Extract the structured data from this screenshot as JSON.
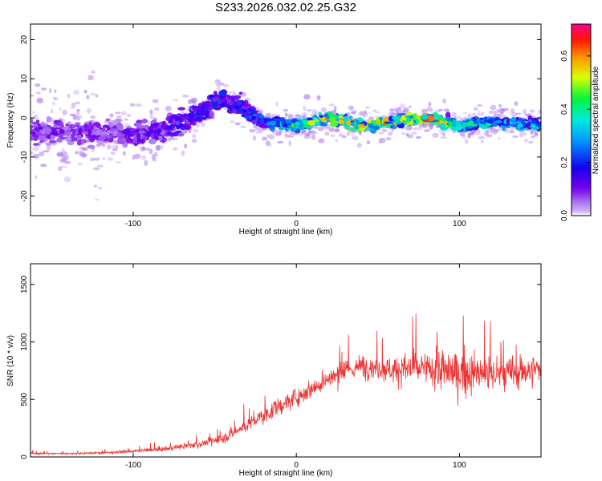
{
  "title": "S233.2026.032.02.25.G32",
  "chart_data": [
    {
      "type": "heatmap",
      "title": "S233.2026.032.02.25.G32",
      "xlabel": "Height of straight line (km)",
      "ylabel": "Frequency (Hz)",
      "xlim": [
        -163,
        150
      ],
      "ylim": [
        -25,
        24
      ],
      "x_ticks": [
        -100,
        0,
        100
      ],
      "y_ticks": [
        -20,
        -10,
        0,
        10,
        20
      ],
      "x_tick_labels": [
        "-100",
        "0",
        "100"
      ],
      "y_tick_labels": [
        "-20",
        "-10",
        "0",
        "10",
        "20"
      ],
      "colorbar": {
        "label": "Normalized spectral amplitude",
        "range": [
          0,
          0.72
        ],
        "ticks": [
          "0.0",
          "0.2",
          "0.4",
          "0.6"
        ],
        "tick_values": [
          0.0,
          0.2,
          0.4,
          0.6
        ],
        "colors": [
          "#ffffff",
          "#ddc8f5",
          "#7a00ee",
          "#0000ff",
          "#00e0ff",
          "#00ff40",
          "#ffff00",
          "#ff8000",
          "#ff0000",
          "#ff0080"
        ]
      },
      "ridge": {
        "x": [
          -160,
          -120,
          -100,
          -80,
          -60,
          -45,
          -35,
          -20,
          0,
          20,
          40,
          60,
          80,
          100,
          120,
          150
        ],
        "frequency": [
          -3,
          -4,
          -4,
          -3,
          1,
          5,
          3,
          -1,
          -2,
          0,
          -2,
          -1,
          0,
          -2,
          -1,
          -2
        ],
        "peak_amplitude": [
          0.12,
          0.1,
          0.13,
          0.15,
          0.2,
          0.22,
          0.22,
          0.3,
          0.45,
          0.62,
          0.55,
          0.6,
          0.66,
          0.42,
          0.38,
          0.35
        ]
      }
    },
    {
      "type": "line",
      "xlabel": "Height of straight line (km)",
      "ylabel": "SNR (10 * v/v)",
      "xlim": [
        -163,
        150
      ],
      "ylim": [
        0,
        1680
      ],
      "x_ticks": [
        -100,
        0,
        100
      ],
      "y_ticks": [
        0,
        500,
        1000,
        1500
      ],
      "x_tick_labels": [
        "-100",
        "0",
        "100"
      ],
      "y_tick_labels": [
        "0",
        "500",
        "1000",
        "1500"
      ],
      "color": "#ee3333",
      "series": [
        {
          "name": "SNR",
          "x": [
            -163,
            -140,
            -120,
            -100,
            -80,
            -60,
            -45,
            -35,
            -20,
            -10,
            0,
            10,
            20,
            30,
            40,
            50,
            60,
            70,
            80,
            90,
            100,
            110,
            120,
            130,
            140,
            150
          ],
          "mean": [
            30,
            30,
            35,
            50,
            70,
            110,
            160,
            240,
            360,
            440,
            520,
            600,
            680,
            740,
            790,
            780,
            760,
            770,
            760,
            750,
            730,
            730,
            720,
            720,
            750,
            760
          ],
          "spread": [
            20,
            20,
            25,
            35,
            50,
            70,
            100,
            140,
            170,
            180,
            190,
            200,
            210,
            220,
            230,
            250,
            300,
            330,
            380,
            420,
            450,
            420,
            400,
            380,
            350,
            320
          ]
        }
      ]
    }
  ]
}
